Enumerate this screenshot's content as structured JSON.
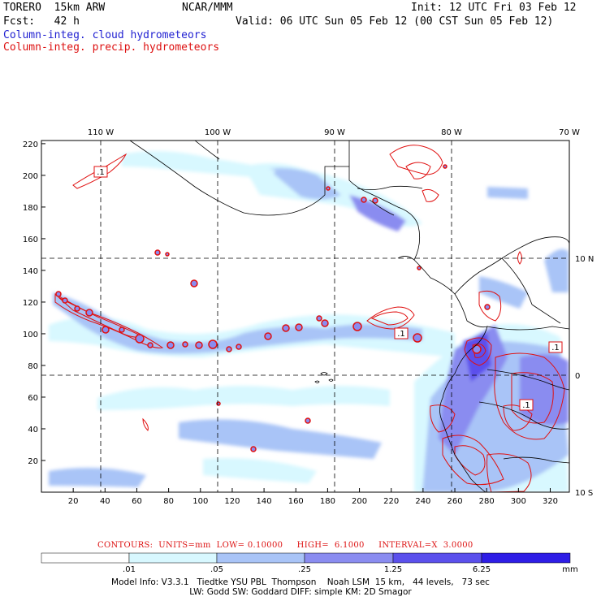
{
  "header": {
    "model": "TORERO  15km ARW",
    "org": "NCAR/MMM",
    "init": "Init: 12 UTC Fri 03 Feb 12",
    "fcst": "Fcst:   42 h",
    "valid": "Valid: 06 UTC Sun 05 Feb 12 (00 CST Sun 05 Feb 12)",
    "field_cloud": "Column-integ. cloud hydrometeors",
    "field_precip": "Column-integ. precip. hydrometeors"
  },
  "map": {
    "lon_labels": [
      "110 W",
      "100 W",
      "90 W",
      "80 W",
      "70 W"
    ],
    "lat_labels": [
      "10 N",
      "0",
      "10 S"
    ],
    "y_ticks": [
      "20",
      "40",
      "60",
      "80",
      "100",
      "120",
      "140",
      "160",
      "180",
      "200",
      "220"
    ],
    "x_ticks": [
      "20",
      "40",
      "60",
      "80",
      "100",
      "120",
      "140",
      "160",
      "180",
      "200",
      "220",
      "240",
      "260",
      "280",
      "300",
      "320"
    ],
    "contour_labels": [
      ".1",
      ".1",
      ".1",
      ".1"
    ]
  },
  "contours_info": "CONTOURS:  UNITS=mm  LOW= 0.10000     HIGH=  6.1000     INTERVAL=X  3.0000",
  "legend": {
    "labels": [
      ".01",
      ".05",
      ".25",
      "1.25",
      "6.25"
    ],
    "unit": "mm",
    "colors": [
      "#ffffff",
      "#d8f8ff",
      "#a9c4f7",
      "#8a8cf0",
      "#5b50ec",
      "#2e1de6"
    ]
  },
  "footer": {
    "line1": "Model Info: V3.3.1   Tiedtke YSU PBL  Thompson    Noah LSM  15 km,   44 levels,   73 sec",
    "line2": "LW: Godd SW: Goddard DIFF: simple KM: 2D Smagor"
  },
  "colors": {
    "cloud": "#1f1fd1",
    "precip": "#d11",
    "contour": "#e01010",
    "map_border": "#000000"
  }
}
